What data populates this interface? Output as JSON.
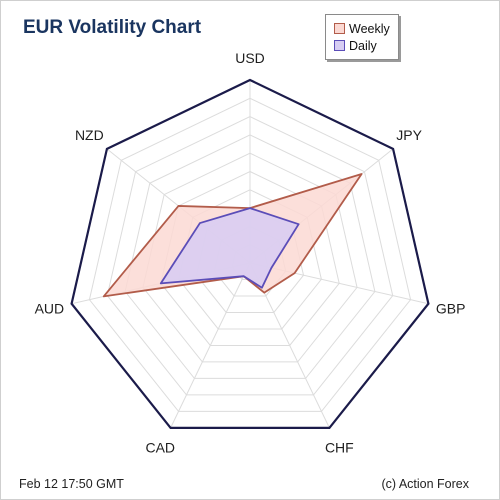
{
  "chart_data": {
    "type": "radar",
    "title": "EUR Volatility Chart",
    "axes": [
      "USD",
      "JPY",
      "GBP",
      "CHF",
      "CAD",
      "AUD",
      "NZD"
    ],
    "rmax": 1.0,
    "grid_rings": 10,
    "grid": true,
    "legend_position": "top-right",
    "series": [
      {
        "name": "Weekly",
        "values": [
          0.3,
          0.78,
          0.25,
          0.18,
          0.08,
          0.82,
          0.5
        ],
        "fill": "#fbd9d3",
        "stroke": "#b25c4a"
      },
      {
        "name": "Daily",
        "values": [
          0.3,
          0.34,
          0.12,
          0.15,
          0.08,
          0.5,
          0.35
        ],
        "fill": "#d7cdf3",
        "stroke": "#5b4db8"
      }
    ],
    "colors": {
      "outline": "#1b1b4a",
      "grid": "#dcdcdc",
      "title": "#1a3560"
    }
  },
  "footer": {
    "date": "Feb 12  17:50 GMT",
    "credit": "(c) Action Forex"
  }
}
